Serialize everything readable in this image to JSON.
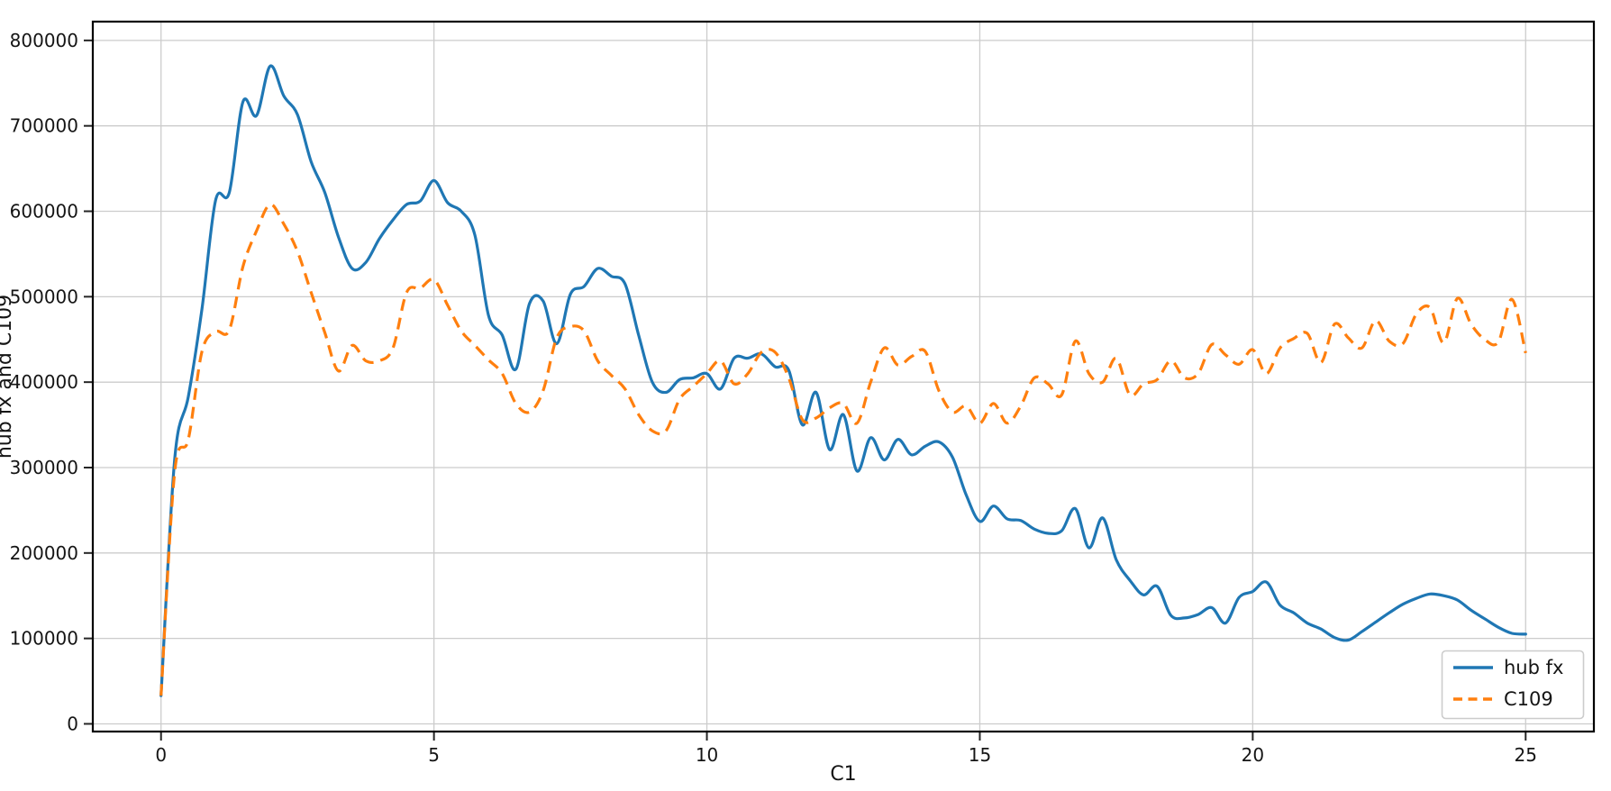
{
  "figure": {
    "background": "#ffffff"
  },
  "chart_data": {
    "type": "line",
    "title": "",
    "xlabel": "C1",
    "ylabel": "hub fx and C109",
    "xlim": [
      -1.25,
      26.25
    ],
    "ylim": [
      -9000,
      822000
    ],
    "x_ticks": [
      0,
      5,
      10,
      15,
      20,
      25
    ],
    "y_ticks": [
      0,
      100000,
      200000,
      300000,
      400000,
      500000,
      600000,
      700000,
      800000
    ],
    "grid": true,
    "grid_color": "#cccccc",
    "legend_position": "lower right",
    "x_start": 0,
    "x_step": 0.25,
    "series": [
      {
        "name": "hub fx",
        "color": "#1f77b4",
        "style": "solid",
        "values": [
          33000,
          310000,
          383000,
          486000,
          613000,
          622000,
          728000,
          712000,
          770000,
          735000,
          713000,
          658000,
          622000,
          570000,
          533000,
          540000,
          568000,
          590000,
          608000,
          612000,
          636000,
          610000,
          600000,
          572000,
          478000,
          455000,
          415000,
          492000,
          495000,
          445000,
          503000,
          512000,
          533000,
          524000,
          515000,
          455000,
          400000,
          388000,
          403000,
          405000,
          410000,
          392000,
          428000,
          428000,
          433000,
          418000,
          414000,
          350000,
          388000,
          321000,
          362000,
          296000,
          335000,
          309000,
          333000,
          315000,
          325000,
          330000,
          312000,
          268000,
          237000,
          255000,
          240000,
          238000,
          228000,
          223000,
          226000,
          252000,
          206000,
          241000,
          192000,
          168000,
          151000,
          161000,
          127000,
          124000,
          128000,
          136000,
          118000,
          148000,
          155000,
          166000,
          139000,
          130000,
          118000,
          111000,
          101000,
          98000,
          108000,
          119000,
          130000,
          140000,
          147000,
          152000,
          150000,
          145000,
          133000,
          123000,
          113000,
          106000,
          105000
        ]
      },
      {
        "name": "C109",
        "color": "#ff7f0e",
        "style": "dashed",
        "values": [
          33000,
          295000,
          333000,
          436000,
          459000,
          461000,
          535000,
          577000,
          608000,
          585000,
          553000,
          505000,
          458000,
          413000,
          443000,
          425000,
          425000,
          440000,
          505000,
          510000,
          520000,
          490000,
          460000,
          443000,
          426000,
          410000,
          375000,
          365000,
          390000,
          452000,
          465000,
          460000,
          425000,
          408000,
          392000,
          362000,
          343000,
          343000,
          380000,
          395000,
          410000,
          425000,
          398000,
          410000,
          435000,
          435000,
          405000,
          356000,
          358000,
          370000,
          375000,
          352000,
          400000,
          440000,
          420000,
          430000,
          436000,
          390000,
          365000,
          372000,
          352000,
          375000,
          352000,
          372000,
          405000,
          398000,
          385000,
          448000,
          410000,
          400000,
          428000,
          385000,
          398000,
          403000,
          425000,
          405000,
          410000,
          444000,
          432000,
          421000,
          438000,
          410000,
          440000,
          451000,
          457000,
          423000,
          468000,
          452000,
          440000,
          472000,
          448000,
          445000,
          480000,
          487000,
          446000,
          498000,
          468000,
          450000,
          447000,
          497000,
          434000
        ]
      }
    ]
  }
}
